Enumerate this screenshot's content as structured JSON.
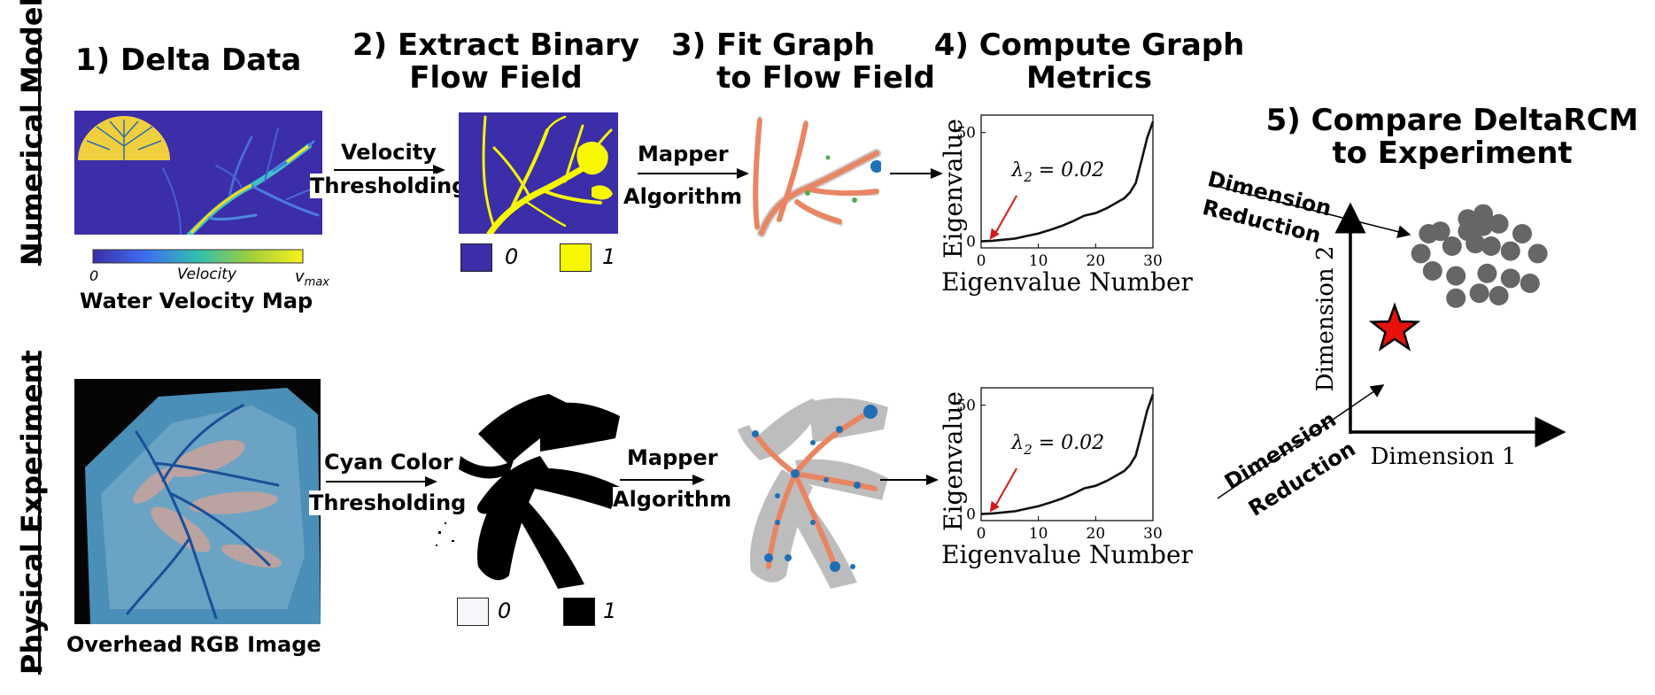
{
  "steps": {
    "s1": "1) Delta Data",
    "s2_line1": "2) Extract Binary",
    "s2_line2": "Flow Field",
    "s3_line1": "3) Fit Graph",
    "s3_line2": "to Flow Field",
    "s4_line1": "4) Compute Graph",
    "s4_line2": "Metrics",
    "s5_line1": "5) Compare DeltaRCM",
    "s5_line2": "to Experiment"
  },
  "rows": {
    "numerical": "Numerical Model",
    "physical": "Physical Experiment"
  },
  "arrows": {
    "velocity_1": "Velocity",
    "velocity_2": "Thresholding",
    "cyan_1": "Cyan Color",
    "cyan_2": "Thresholding",
    "mapper_1": "Mapper",
    "mapper_2": "Algorithm",
    "dimred_1": "Dimension",
    "dimred_2": "Reduction"
  },
  "colorbar": {
    "min": "0",
    "label": "Velocity",
    "max_symbol": "v",
    "max_sub": "max"
  },
  "captions": {
    "velocity_map": "Water Velocity Map",
    "rgb_image": "Overhead RGB Image"
  },
  "legend": {
    "zero": "0",
    "one": "1"
  },
  "eigen_plot": {
    "ylabel": "Eigenvalue",
    "xlabel": "Eigenvalue Number",
    "y_tick_top": "50",
    "y_tick_zero": "0",
    "x_ticks": [
      "0",
      "10",
      "20",
      "30"
    ],
    "lambda_symbol": "λ",
    "lambda_sub": "2",
    "lambda_val": " = 0.02"
  },
  "chart_data": [
    {
      "type": "line",
      "xlabel": "Eigenvalue Number",
      "ylabel": "Eigenvalue",
      "xlim": [
        0,
        30
      ],
      "ylim": [
        -3,
        58
      ],
      "x": [
        0,
        2,
        4,
        6,
        8,
        10,
        12,
        14,
        16,
        18,
        20,
        22,
        24,
        25,
        26,
        27,
        28,
        29,
        30
      ],
      "y": [
        0,
        0.3,
        0.8,
        1.3,
        2.5,
        3.6,
        5.2,
        7.0,
        9.2,
        11.8,
        13.0,
        15.3,
        18.3,
        19.8,
        22.5,
        26.8,
        37.0,
        47.5,
        55.0
      ],
      "annotation": "λ2 = 0.02"
    },
    {
      "type": "line",
      "xlabel": "Eigenvalue Number",
      "ylabel": "Eigenvalue",
      "xlim": [
        0,
        30
      ],
      "ylim": [
        -3,
        58
      ],
      "x": [
        0,
        2,
        4,
        6,
        8,
        10,
        12,
        14,
        16,
        18,
        20,
        22,
        24,
        25,
        26,
        27,
        28,
        29,
        30
      ],
      "y": [
        0,
        0.3,
        0.8,
        1.3,
        2.5,
        3.6,
        5.2,
        7.0,
        9.2,
        11.8,
        13.0,
        15.3,
        18.3,
        19.8,
        22.5,
        26.8,
        37.0,
        47.5,
        55.0
      ],
      "annotation": "λ2 = 0.02"
    },
    {
      "type": "scatter",
      "xlabel": "Dimension 1",
      "ylabel": "Dimension 2",
      "series": [
        {
          "x": [
            2.1,
            2.5,
            1.1,
            1.4,
            2.1,
            2.5,
            2.9,
            3.5,
            0.9,
            1.7,
            2.3,
            2.7,
            3.2,
            3.9,
            1.2,
            1.8,
            2.6,
            3.2,
            3.7,
            1.8,
            2.4,
            2.9
          ],
          "y": [
            8.6,
            8.8,
            8.0,
            8.1,
            8.1,
            8.3,
            8.4,
            8.0,
            7.2,
            7.5,
            7.6,
            7.5,
            7.3,
            7.2,
            6.5,
            6.3,
            6.4,
            6.2,
            6.0,
            5.4,
            5.6,
            5.5
          ]
        }
      ],
      "highlight": {
        "x": 0.5,
        "y": 3.5,
        "marker": "star",
        "color": "#e8120c"
      }
    }
  ],
  "colors": {
    "velocity_bg": "#3b2ea8",
    "binary_one": "#f7f700",
    "graph_edge": "#e98563",
    "graph_node": "#1f6fb7",
    "gray_field": "#bdbdbd",
    "arrow_red": "#d11a1a",
    "scatter_gray": "#666666"
  }
}
